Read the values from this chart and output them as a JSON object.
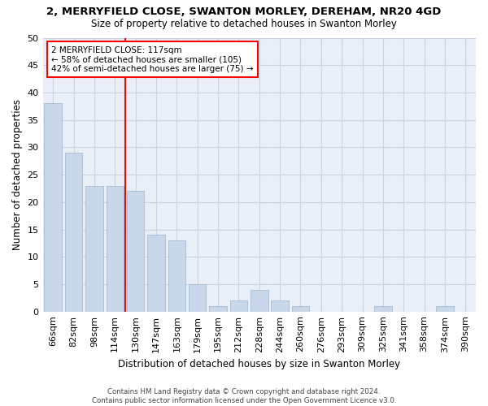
{
  "title1": "2, MERRYFIELD CLOSE, SWANTON MORLEY, DEREHAM, NR20 4GD",
  "title2": "Size of property relative to detached houses in Swanton Morley",
  "xlabel": "Distribution of detached houses by size in Swanton Morley",
  "ylabel": "Number of detached properties",
  "categories": [
    "66sqm",
    "82sqm",
    "98sqm",
    "114sqm",
    "130sqm",
    "147sqm",
    "163sqm",
    "179sqm",
    "195sqm",
    "212sqm",
    "228sqm",
    "244sqm",
    "260sqm",
    "276sqm",
    "293sqm",
    "309sqm",
    "325sqm",
    "341sqm",
    "358sqm",
    "374sqm",
    "390sqm"
  ],
  "values": [
    38,
    29,
    23,
    23,
    22,
    14,
    13,
    5,
    1,
    2,
    4,
    2,
    1,
    0,
    0,
    0,
    1,
    0,
    0,
    1,
    0
  ],
  "bar_color": "#c8d8ea",
  "bar_edge_color": "#9ab4cc",
  "grid_color": "#c8d4e4",
  "vline_x": 3.5,
  "vline_color": "red",
  "annotation_title": "2 MERRYFIELD CLOSE: 117sqm",
  "annotation_line1": "← 58% of detached houses are smaller (105)",
  "annotation_line2": "42% of semi-detached houses are larger (75) →",
  "annotation_box_color": "red",
  "ylim": [
    0,
    50
  ],
  "yticks": [
    0,
    5,
    10,
    15,
    20,
    25,
    30,
    35,
    40,
    45,
    50
  ],
  "footnote1": "Contains HM Land Registry data © Crown copyright and database right 2024.",
  "footnote2": "Contains public sector information licensed under the Open Government Licence v3.0."
}
